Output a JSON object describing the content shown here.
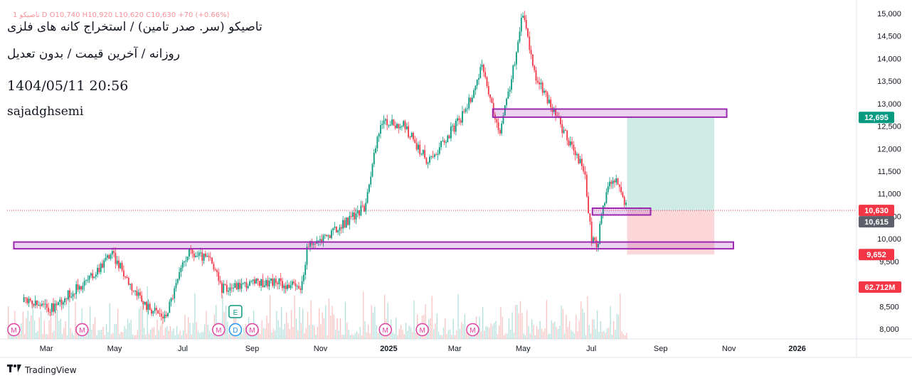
{
  "header": {
    "title": "تاصیکو (سر. صدر تامین) / استخراج کانه های فلزی",
    "subtitle": "روزانه / آخرین قیمت / بدون تعدیل",
    "datetime": "1404/05/11 20:56",
    "author": "sajadghsemi",
    "ohlc": "1 تاصیکو D O10,740 H10,920 L10,620 C10,630 +70 (+0.66%)"
  },
  "brand": {
    "name": "TradingView",
    "icon": "tradingview-logo-icon"
  },
  "chart_data": {
    "type": "candlestick",
    "y_axis": {
      "range": [
        7900,
        15100
      ],
      "ticks": [
        "8,000",
        "8,500",
        "9,500",
        "10,000",
        "10,500",
        "11,000",
        "11,500",
        "12,000",
        "12,500",
        "13,000",
        "13,500",
        "14,000",
        "14,500",
        "15,000"
      ]
    },
    "x_axis": {
      "ticks": [
        "Mar",
        "May",
        "Jul",
        "Sep",
        "Nov",
        "2025",
        "Mar",
        "May",
        "Jul",
        "Sep",
        "Nov",
        "2026"
      ]
    },
    "price_labels": [
      {
        "value": 12695,
        "text": "12,695",
        "color": "#089981"
      },
      {
        "value": 10630,
        "text": "10,630",
        "color": "#f23645"
      },
      {
        "value": 10615,
        "text": "10,615",
        "color": "#5d606b"
      },
      {
        "value": 9652,
        "text": "9,652",
        "color": "#f23645"
      }
    ],
    "volume_label": {
      "text": "62.712M",
      "color": "#f23645"
    },
    "last_price": 10630,
    "price_path": [
      {
        "date": "2024-02-10",
        "price": 8600
      },
      {
        "date": "2024-03-05",
        "price": 8450
      },
      {
        "date": "2024-04-10",
        "price": 9150
      },
      {
        "date": "2024-04-28",
        "price": 9700
      },
      {
        "date": "2024-05-25",
        "price": 8600
      },
      {
        "date": "2024-06-15",
        "price": 8250
      },
      {
        "date": "2024-07-05",
        "price": 9700
      },
      {
        "date": "2024-07-25",
        "price": 9550
      },
      {
        "date": "2024-08-05",
        "price": 8900
      },
      {
        "date": "2024-08-25",
        "price": 9000
      },
      {
        "date": "2024-09-20",
        "price": 9050
      },
      {
        "date": "2024-10-15",
        "price": 8900
      },
      {
        "date": "2024-10-20",
        "price": 9800
      },
      {
        "date": "2024-11-15",
        "price": 10200
      },
      {
        "date": "2024-12-10",
        "price": 10700
      },
      {
        "date": "2024-12-25",
        "price": 12600
      },
      {
        "date": "2025-01-15",
        "price": 12500
      },
      {
        "date": "2025-02-05",
        "price": 11700
      },
      {
        "date": "2025-03-10",
        "price": 12800
      },
      {
        "date": "2025-03-25",
        "price": 13800
      },
      {
        "date": "2025-04-10",
        "price": 12300
      },
      {
        "date": "2025-04-25",
        "price": 14100
      },
      {
        "date": "2025-05-01",
        "price": 15050
      },
      {
        "date": "2025-05-12",
        "price": 13600
      },
      {
        "date": "2025-05-25",
        "price": 13000
      },
      {
        "date": "2025-06-10",
        "price": 12200
      },
      {
        "date": "2025-06-25",
        "price": 11500
      },
      {
        "date": "2025-07-01",
        "price": 10000
      },
      {
        "date": "2025-07-06",
        "price": 9800
      },
      {
        "date": "2025-07-12",
        "price": 10800
      },
      {
        "date": "2025-07-20",
        "price": 11400
      },
      {
        "date": "2025-07-27",
        "price": 11100
      },
      {
        "date": "2025-08-02",
        "price": 10630
      }
    ],
    "zones": [
      {
        "name": "resistance-zone",
        "from": "2025-04-04",
        "to": "2025-10-30",
        "y_low": 12700,
        "y_high": 12880
      },
      {
        "name": "entry-zone",
        "from": "2025-07-02",
        "to": "2025-08-23",
        "y_low": 10530,
        "y_high": 10680
      },
      {
        "name": "support-zone",
        "from": "2024-02-01",
        "to": "2025-11-05",
        "y_low": 9780,
        "y_high": 9930
      }
    ],
    "position": {
      "from": "2025-08-02",
      "to": "2025-10-19",
      "target": 12695,
      "entry": 10630,
      "stop": 9652
    },
    "markers": [
      {
        "date": "2024-02-01",
        "label": "M",
        "color": "#e040a0"
      },
      {
        "date": "2024-04-02",
        "label": "M",
        "color": "#e040a0"
      },
      {
        "date": "2024-08-02",
        "label": "M",
        "color": "#e040a0"
      },
      {
        "date": "2024-08-17",
        "label": "D",
        "color": "#2196f3"
      },
      {
        "date": "2024-09-01",
        "label": "M",
        "color": "#e040a0"
      },
      {
        "date": "2024-12-29",
        "label": "M",
        "color": "#e040a0"
      },
      {
        "date": "2025-01-31",
        "label": "M",
        "color": "#e040a0"
      },
      {
        "date": "2025-03-17",
        "label": "M",
        "color": "#e040a0"
      }
    ],
    "earnings": {
      "date": "2024-08-17",
      "label": "E",
      "color": "#089981"
    }
  }
}
